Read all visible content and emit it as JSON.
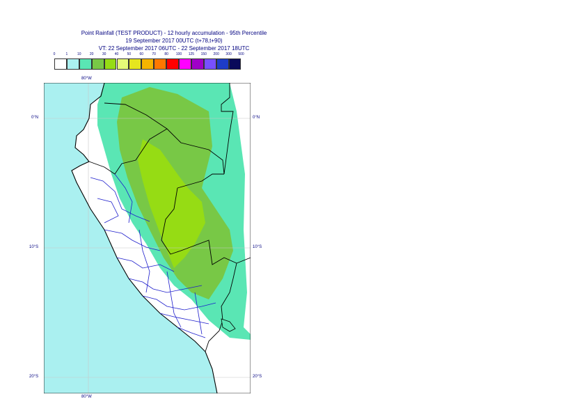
{
  "title": {
    "line1": "Point Rainfall (TEST PRODUCT) - 12 hourly accumulation - 95th Percentile",
    "line2": "19 September 2017 00UTC (t+78,t+90)",
    "line3": "VT: 22 September 2017 06UTC - 22 September 2017 18UTC"
  },
  "legend": {
    "ticks": [
      "0",
      "1",
      "10",
      "20",
      "30",
      "40",
      "50",
      "60",
      "70",
      "80",
      "100",
      "125",
      "150",
      "200",
      "300",
      "500"
    ],
    "colors": [
      "#ffffff",
      "#aaf0f0",
      "#5ae6b4",
      "#78c846",
      "#96dc14",
      "#e6fa78",
      "#e6e61e",
      "#f5b400",
      "#ff7800",
      "#ff0000",
      "#ff00ff",
      "#a000c8",
      "#7850ff",
      "#1e3cc8",
      "#0a0a5a"
    ]
  },
  "axes": {
    "lon_top": "80°W",
    "lon_bottom": "80°W",
    "lat_0_left": "0°N",
    "lat_0_right": "0°N",
    "lat_10_left": "10°S",
    "lat_10_right": "10°S",
    "lat_20_left": "20°S",
    "lat_20_right": "20°S"
  },
  "map": {
    "ocean_color": "#aaf0f0",
    "land_color": "#ffffff",
    "rain_10_color": "#5ae6b4",
    "rain_20_color": "#78c846",
    "rain_30_color": "#96dc14",
    "coast_color": "#000000",
    "region_border_color": "#1e1ecc",
    "grid_color": "#c8c8c8"
  }
}
